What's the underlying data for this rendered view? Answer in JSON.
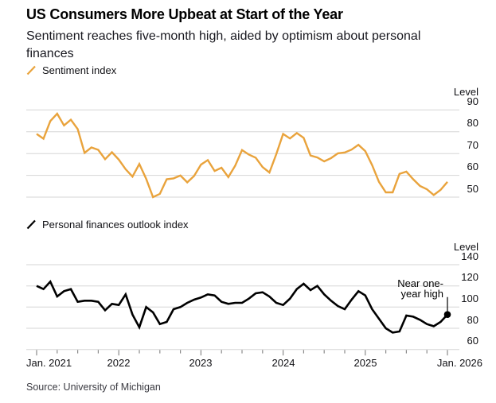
{
  "header": {
    "title": "US Consumers More Upbeat at Start of the Year",
    "subtitle": "Sentiment reaches five-month high, aided by optimism about personal finances"
  },
  "source": "Source: University of Michigan",
  "x_axis": {
    "labels": [
      "Jan. 2021",
      "2022",
      "2023",
      "2024",
      "2025",
      "Jan. 2026"
    ],
    "minor_tick_every_months": 3,
    "major_tick_every_months": 12
  },
  "colors": {
    "sentiment_orange": "#E9A33C",
    "finances_black": "#000000",
    "grid_gray": "#D6D6D6",
    "tick_gray": "#8A8A8A"
  },
  "chart_data": [
    {
      "type": "line",
      "name": "sentiment-index",
      "title": "Sentiment index",
      "ylabel": "Level",
      "color": "#E9A33C",
      "ylim": [
        50,
        90
      ],
      "yticks": [
        90,
        80,
        70,
        60,
        50
      ],
      "x_start": "2021-01",
      "x_end": "2026-01",
      "frequency": "monthly",
      "legend_position": "top-left",
      "grid": true,
      "values": [
        79,
        76.8,
        84.9,
        88.3,
        82.9,
        85.5,
        81.2,
        70.3,
        72.8,
        71.7,
        67.4,
        70.6,
        67.2,
        62.8,
        59.4,
        65.2,
        58.4,
        50,
        51.5,
        58.2,
        58.6,
        59.9,
        56.8,
        59.7,
        64.9,
        67,
        62,
        63.5,
        59.2,
        64.4,
        71.6,
        69.5,
        68.1,
        63.8,
        61.3,
        69.7,
        79,
        76.9,
        79.4,
        77.2,
        69.1,
        68.2,
        66.4,
        67.9,
        70.1,
        70.5,
        71.8,
        74,
        71.1,
        64.7,
        57,
        52.2,
        52.2,
        60.7,
        61.7,
        58.2,
        55.1,
        53.6,
        51,
        53.3,
        57
      ]
    },
    {
      "type": "line",
      "name": "personal-finances-outlook",
      "title": "Personal finances outlook index",
      "ylabel": "Level",
      "color": "#000000",
      "ylim": [
        60,
        140
      ],
      "yticks": [
        140,
        120,
        100,
        80,
        60
      ],
      "x_start": "2021-01",
      "x_end": "2026-01",
      "frequency": "monthly",
      "legend_position": "top-left",
      "grid": true,
      "values": [
        120,
        117,
        124,
        110,
        115,
        117,
        105,
        106,
        106,
        105,
        97,
        103,
        102,
        112,
        93,
        81,
        100,
        95,
        84,
        86,
        98,
        100,
        104,
        107,
        109,
        112,
        111,
        105,
        103,
        104,
        104,
        108,
        113,
        114,
        110,
        104,
        102,
        108,
        117,
        122,
        116,
        120,
        112,
        106,
        101,
        98,
        107,
        115,
        111,
        98,
        89,
        80,
        76,
        77,
        92,
        91,
        88,
        84,
        82,
        86,
        93
      ],
      "annotation": {
        "line1": "Near one-",
        "line2": "year high",
        "target": "last-point",
        "marker": "filled-dot"
      }
    }
  ]
}
